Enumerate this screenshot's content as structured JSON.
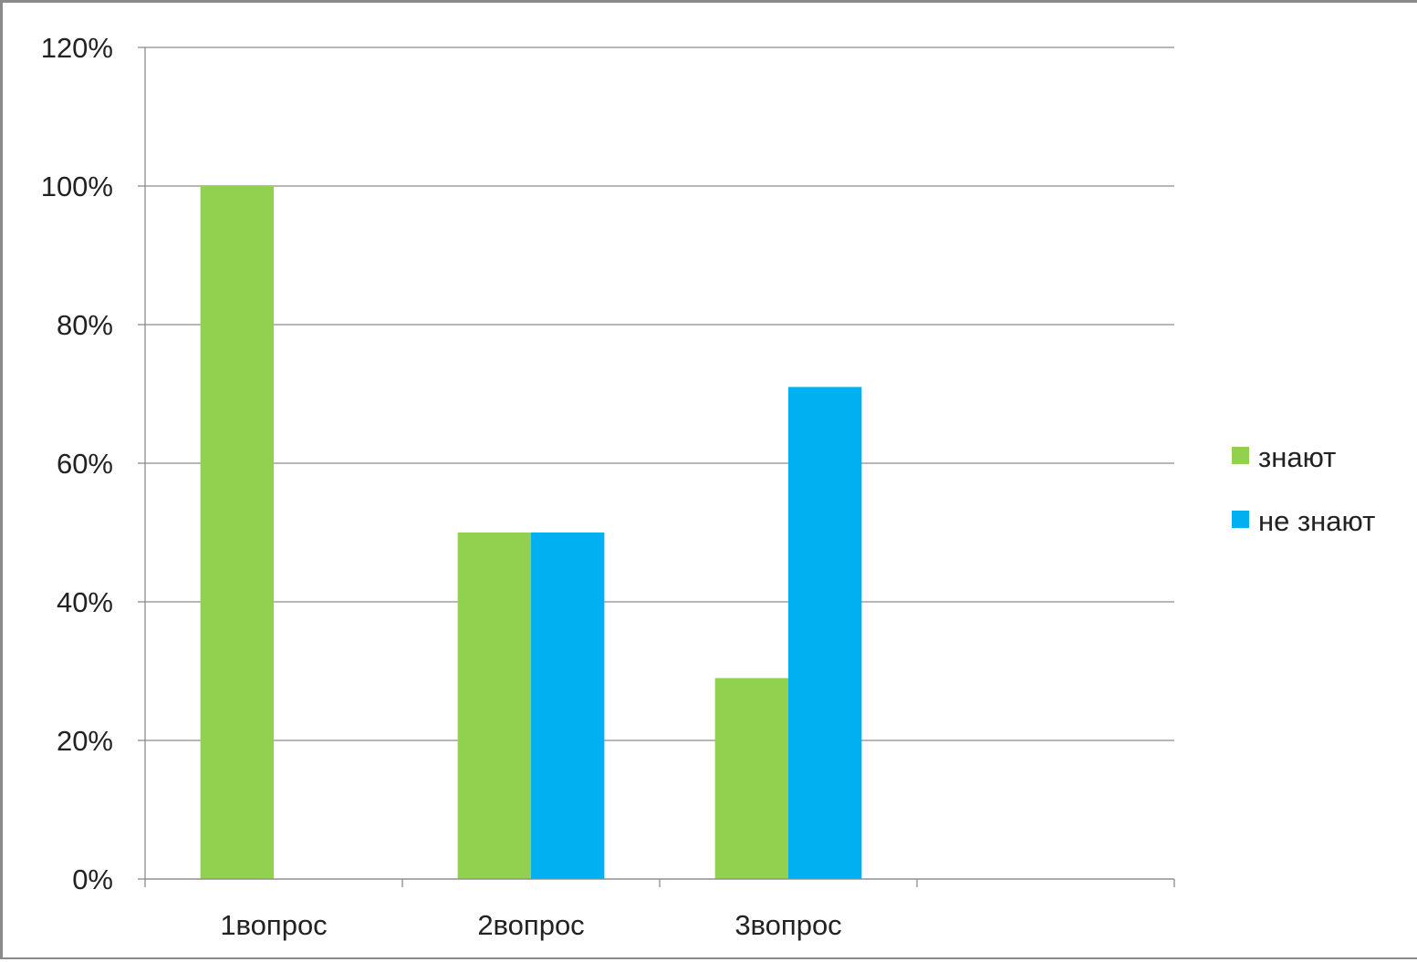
{
  "chart_data": {
    "type": "bar",
    "categories": [
      "1вопрос",
      "2вопрос",
      "3вопрос",
      ""
    ],
    "series": [
      {
        "name": "знают",
        "values": [
          100,
          50,
          29,
          null
        ],
        "color": "#92d050"
      },
      {
        "name": "не знают",
        "values": [
          null,
          50,
          71,
          null
        ],
        "color": "#00b0f0"
      }
    ],
    "ylim": [
      0,
      120
    ],
    "y_ticks": [
      0,
      20,
      40,
      60,
      80,
      100,
      120
    ],
    "y_tick_labels": [
      "0%",
      "20%",
      "40%",
      "60%",
      "80%",
      "100%",
      "120%"
    ],
    "title": "",
    "xlabel": "",
    "ylabel": "",
    "grid": true,
    "legend_position": "right"
  }
}
